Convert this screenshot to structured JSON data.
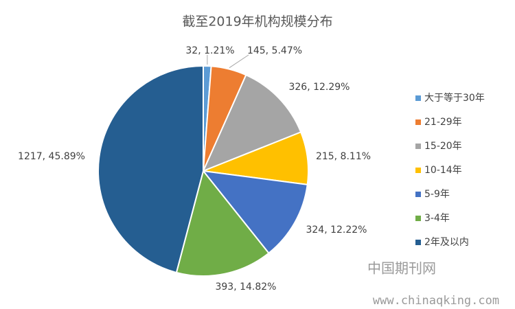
{
  "chart_data": {
    "type": "pie",
    "title": "截至2019年机构规模分布",
    "categories": [
      "大于等于30年",
      "21-29年",
      "15-20年",
      "10-14年",
      "5-9年",
      "3-4年",
      "2年及以内"
    ],
    "values": [
      32,
      145,
      326,
      215,
      324,
      393,
      1217
    ],
    "value_labels": [
      "32, 1.21%",
      "145, 5.47%",
      "326, 12.29%",
      "215, 8.11%",
      "324, 12.22%",
      "393, 14.82%",
      "1217, 45.89%"
    ],
    "colors": [
      "#5b9bd5",
      "#ed7d31",
      "#a5a5a5",
      "#ffc000",
      "#4472c4",
      "#70ad47",
      "#255e91"
    ],
    "legend": "right"
  },
  "watermark": {
    "name": "中国期刊网",
    "url": "www.chinaqking.com"
  }
}
